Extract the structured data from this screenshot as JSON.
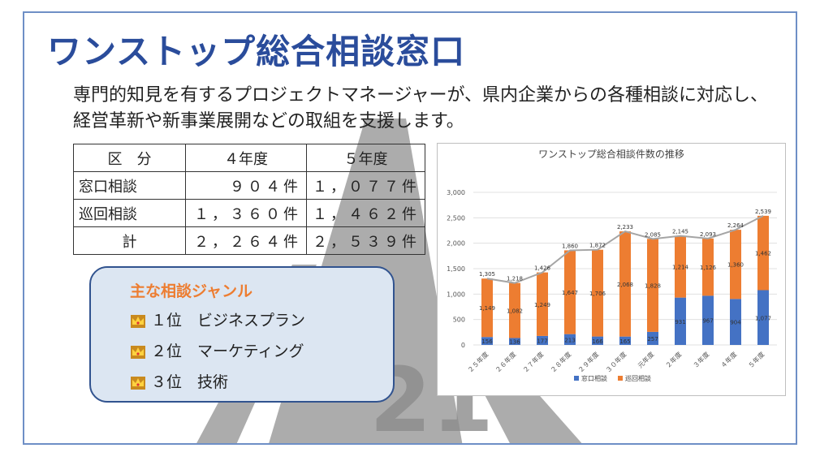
{
  "slide": {
    "title": "ワンストップ総合相談窓口",
    "lead": "専門的知見を有するプロジェクトマネージャーが、県内企業からの各種相談に対応し、経営革新や新事業展開などの取組を支援します。"
  },
  "table": {
    "headers": [
      "区　分",
      "４年度",
      "５年度"
    ],
    "rows": [
      [
        "窓口相談",
        "９０４件",
        "１，０７７件"
      ],
      [
        "巡回相談",
        "１，３６０件",
        "１，４６２件"
      ],
      [
        "計",
        "２，２６４件",
        "２，５３９件"
      ]
    ]
  },
  "genre": {
    "title": "主な相談ジャンル",
    "items": [
      {
        "rank": "１位",
        "label": "ビジネスプラン"
      },
      {
        "rank": "２位",
        "label": "マーケティング"
      },
      {
        "rank": "３位",
        "label": "技術"
      }
    ],
    "icon": "crown-icon",
    "watermark_text": "21"
  },
  "colors": {
    "title": "#2a4c9b",
    "window_series": "#4472c4",
    "visit_series": "#ed7d31",
    "total_line": "#a5a5a5",
    "genre_fill": "#dce6f2",
    "genre_border": "#31538f"
  },
  "chart_data": {
    "type": "bar",
    "stacked": true,
    "title": "ワンストップ総合相談件数の推移",
    "categories": [
      "２５年度",
      "２６年度",
      "２７年度",
      "２８年度",
      "２９年度",
      "３０年度",
      "元年度",
      "２年度",
      "３年度",
      "４年度",
      "５年度"
    ],
    "series": [
      {
        "name": "窓口相談",
        "values": [
          156,
          136,
          177,
          213,
          166,
          165,
          257,
          931,
          967,
          904,
          1077
        ]
      },
      {
        "name": "巡回相談",
        "values": [
          1149,
          1082,
          1249,
          1647,
          1706,
          2068,
          1828,
          1214,
          1126,
          1360,
          1462
        ]
      }
    ],
    "totals": [
      1305,
      1218,
      1426,
      1860,
      1872,
      2233,
      2085,
      2145,
      2093,
      2264,
      2539
    ],
    "ylim": [
      0,
      3000
    ],
    "yticks": [
      "0",
      "500",
      "1,000",
      "1,500",
      "2,000",
      "2,500",
      "3,000"
    ],
    "grid": true,
    "legend": "bottom"
  }
}
